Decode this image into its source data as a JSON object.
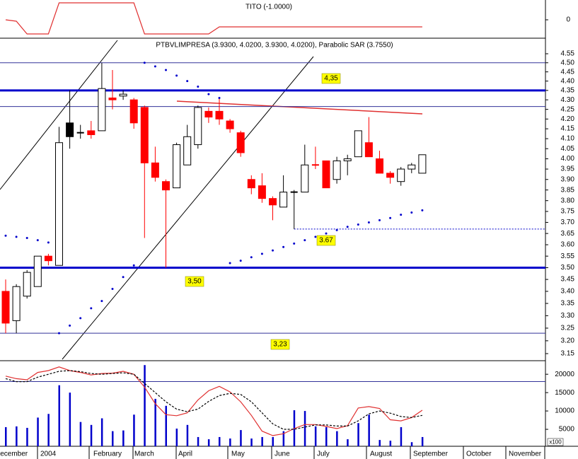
{
  "chart_data": [
    {
      "type": "line",
      "title": "TITO (-1.0000)",
      "ylim": [
        -2.5,
        2.8
      ],
      "yticks": [
        0
      ],
      "series": [
        {
          "color": "#e03030",
          "values": [
            0,
            -0.2,
            -2,
            -2,
            -2,
            2.4,
            2.4,
            2.4,
            2.4,
            2.4,
            2.4,
            2.4,
            2.4,
            -2,
            -2,
            -2,
            -2,
            -2,
            -2,
            -2,
            -1,
            -1,
            -1,
            -1,
            -1,
            -1,
            -1,
            -1,
            -1,
            -1,
            -1,
            -1,
            -1,
            -1,
            -1,
            -1,
            -1,
            -1,
            -1,
            -1
          ]
        }
      ]
    },
    {
      "type": "candlestick",
      "title": "PTBVLIMPRESA (3.9300, 4.0200, 3.9300, 4.0200), Parabolic SAR (3.7550)",
      "log": true,
      "ylim": [
        3.15,
        4.55
      ],
      "yticks": [
        3.15,
        {
          "value": 3.2,
          "label": "3.20"
        },
        3.25,
        {
          "value": 3.3,
          "label": "3.30"
        },
        3.35,
        {
          "value": 3.4,
          "label": "3.40"
        },
        3.45,
        {
          "value": 3.5,
          "label": "3.50"
        },
        3.55,
        {
          "value": 3.6,
          "label": "3.60"
        },
        3.65,
        {
          "value": 3.7,
          "label": "3.70"
        },
        3.75,
        {
          "value": 3.8,
          "label": "3.80"
        },
        3.85,
        {
          "value": 3.9,
          "label": "3.90"
        },
        3.95,
        {
          "value": 4.0,
          "label": "4.00"
        },
        4.05,
        {
          "value": 4.1,
          "label": "4.10"
        },
        4.15,
        {
          "value": 4.2,
          "label": "4.20"
        },
        4.25,
        {
          "value": 4.3,
          "label": "4.30"
        },
        4.35,
        {
          "value": 4.4,
          "label": "4.40"
        },
        4.45,
        {
          "value": 4.5,
          "label": "4.50"
        },
        4.55
      ],
      "open": [
        3.4,
        3.28,
        3.38,
        3.42,
        3.55,
        3.51,
        4.18,
        4.13,
        4.14,
        4.14,
        4.31,
        4.32,
        4.3,
        4.26,
        3.98,
        3.89,
        3.86,
        3.97,
        4.07,
        4.24,
        4.24,
        4.19,
        4.13,
        3.9,
        3.87,
        3.81,
        3.77,
        3.84,
        3.84,
        3.97,
        3.99,
        3.9,
        3.99,
        4.01,
        4.08,
        4.0,
        3.93,
        3.89,
        3.95,
        3.93
      ],
      "high": [
        3.45,
        3.43,
        3.49,
        3.55,
        3.56,
        4.16,
        4.35,
        4.17,
        4.19,
        4.5,
        4.46,
        4.35,
        4.31,
        4.27,
        4.06,
        3.9,
        4.08,
        4.17,
        4.27,
        4.26,
        4.31,
        4.2,
        4.14,
        3.92,
        3.93,
        3.82,
        3.92,
        3.85,
        4.07,
        4.06,
        3.99,
        4.01,
        4.02,
        4.14,
        4.21,
        4.04,
        3.94,
        3.96,
        3.98,
        4.02
      ],
      "low": [
        3.23,
        3.23,
        3.37,
        3.42,
        3.51,
        3.51,
        4.05,
        4.1,
        4.1,
        4.14,
        4.25,
        4.3,
        4.15,
        3.63,
        3.89,
        3.5,
        3.86,
        3.97,
        4.05,
        4.18,
        4.17,
        4.13,
        4.01,
        3.83,
        3.79,
        3.71,
        3.77,
        3.67,
        3.84,
        3.95,
        3.86,
        3.88,
        3.92,
        4.01,
        4.01,
        3.93,
        3.88,
        3.87,
        3.93,
        3.93
      ],
      "close": [
        3.27,
        3.42,
        3.48,
        3.55,
        3.53,
        4.08,
        4.11,
        4.13,
        4.12,
        4.36,
        4.3,
        4.33,
        4.18,
        3.98,
        3.91,
        3.85,
        4.07,
        4.11,
        4.26,
        4.21,
        4.2,
        4.15,
        4.03,
        3.86,
        3.81,
        3.78,
        3.84,
        3.84,
        3.97,
        3.97,
        3.86,
        3.99,
        4.0,
        4.14,
        4.01,
        3.93,
        3.91,
        3.95,
        3.97,
        4.02
      ],
      "colors": [
        "#ff0000",
        "#ffffff",
        "#ffffff",
        "#ffffff",
        "#ff0000",
        "#ffffff",
        "#000000",
        "#000000",
        "#ff0000",
        "#ffffff",
        "#ff0000",
        "#ffffff",
        "#ff0000",
        "#ff0000",
        "#ff0000",
        "#ff0000",
        "#ffffff",
        "#ffffff",
        "#ffffff",
        "#ff0000",
        "#ff0000",
        "#ff0000",
        "#ff0000",
        "#ff0000",
        "#ff0000",
        "#ff0000",
        "#ffffff",
        "#000000",
        "#ffffff",
        "#ff0000",
        "#ff0000",
        "#ffffff",
        "#ffffff",
        "#ffffff",
        "#ff0000",
        "#ff0000",
        "#ff0000",
        "#ffffff",
        "#ffffff",
        "#ffffff"
      ],
      "sar": {
        "color": "#0000cc",
        "values": [
          3.64,
          3.635,
          3.63,
          3.62,
          3.61,
          3.23,
          3.26,
          3.29,
          3.33,
          3.36,
          3.41,
          3.46,
          3.51,
          4.5,
          4.48,
          4.46,
          4.43,
          4.4,
          4.37,
          4.33,
          4.31,
          3.52,
          3.53,
          3.545,
          3.56,
          3.575,
          3.59,
          3.605,
          3.62,
          3.635,
          3.65,
          3.665,
          3.68,
          3.69,
          3.7,
          3.71,
          3.72,
          3.735,
          3.745,
          3.755
        ]
      },
      "levels": [
        {
          "value": 4.35,
          "label": "4,35",
          "color": "#0000cc",
          "width": 3
        },
        {
          "value": 3.5,
          "label": "3,50",
          "color": "#0000cc",
          "width": 3
        },
        {
          "value": 3.23,
          "label": "3,23",
          "color": "#333399",
          "width": 1
        },
        {
          "value": 3.67,
          "label": "3.67",
          "color": "#0000cc",
          "width": 1,
          "dash": true
        },
        {
          "value": 4.5,
          "color": "#333399",
          "width": 1
        },
        {
          "value": 4.265,
          "color": "#333399",
          "width": 1
        }
      ]
    },
    {
      "type": "bar",
      "color": "#0000cc",
      "unit_label": "x100",
      "ylim": [
        0,
        23500
      ],
      "yticks": [
        5000,
        10000,
        15000,
        20000
      ],
      "values": [
        5600,
        5800,
        5400,
        8200,
        9200,
        17000,
        15000,
        7000,
        6200,
        8000,
        4500,
        4700,
        9000,
        22500,
        13300,
        11400,
        5200,
        6200,
        2900,
        2300,
        2900,
        2500,
        4800,
        2500,
        2900,
        2900,
        4500,
        10200,
        10000,
        5800,
        5600,
        4500,
        2300,
        6700,
        9000,
        2100,
        1900,
        5600,
        1500,
        2900
      ],
      "lines": [
        {
          "color": "#e03030",
          "values": [
            19500,
            18800,
            18500,
            20500,
            21000,
            22000,
            21000,
            20500,
            19800,
            20200,
            20300,
            20800,
            20000,
            16500,
            12000,
            9000,
            8700,
            9500,
            13000,
            15500,
            16700,
            15200,
            12500,
            8800,
            4500,
            3300,
            3800,
            5200,
            6300,
            6300,
            5800,
            5200,
            6000,
            10800,
            11200,
            10700,
            7600,
            7300,
            8200,
            10200
          ]
        },
        {
          "color": "#000000",
          "dash": true,
          "values": [
            18800,
            18000,
            18000,
            19200,
            20000,
            20800,
            21000,
            20700,
            20200,
            20000,
            20200,
            20400,
            20000,
            17500,
            15000,
            12500,
            10500,
            9800,
            10500,
            12600,
            14200,
            14800,
            14500,
            12500,
            9500,
            6500,
            5000,
            5000,
            5600,
            6200,
            6200,
            5900,
            5900,
            7300,
            9200,
            10000,
            9400,
            8500,
            8200,
            8800
          ]
        }
      ],
      "levels": [
        {
          "value": 18000,
          "color": "#333399",
          "width": 1
        }
      ],
      "months": [
        "December",
        "2004",
        "February",
        "March",
        "April",
        "May",
        "June",
        "July",
        "August",
        "September",
        "October",
        "November"
      ]
    }
  ]
}
